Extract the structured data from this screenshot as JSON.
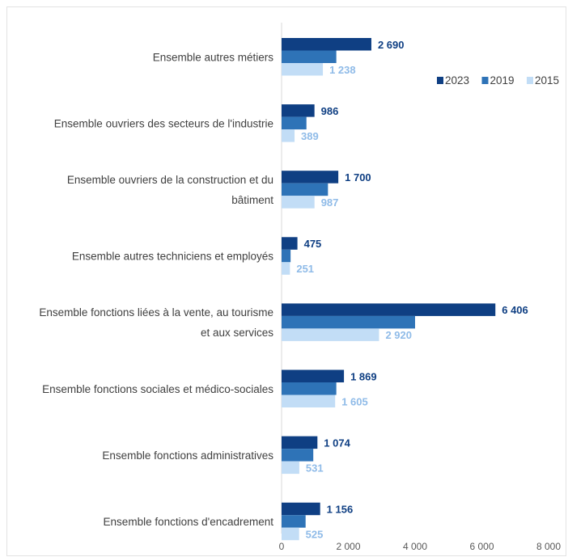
{
  "chart_data": {
    "type": "bar",
    "orientation": "horizontal",
    "categories": [
      [
        "Ensemble autres métiers"
      ],
      [
        "Ensemble ouvriers des secteurs de l'industrie"
      ],
      [
        "Ensemble ouvriers de la construction et du",
        "bâtiment"
      ],
      [
        "Ensemble autres techniciens et employés"
      ],
      [
        "Ensemble fonctions liées à la vente, au tourisme",
        "et aux services"
      ],
      [
        "Ensemble fonctions sociales et médico-sociales"
      ],
      [
        "Ensemble fonctions administratives"
      ],
      [
        "Ensemble fonctions d'encadrement"
      ]
    ],
    "series": [
      {
        "name": "2023",
        "color": "#0f3f83",
        "label_color": "#0f3f83",
        "values": [
          2690,
          986,
          1700,
          475,
          6406,
          1869,
          1074,
          1156
        ],
        "value_labels": [
          "2 690",
          "986",
          "1 700",
          "475",
          "6 406",
          "1 869",
          "1 074",
          "1 156"
        ],
        "show_labels": true
      },
      {
        "name": "2019",
        "color": "#2e73b7",
        "label_color": "#2e73b7",
        "values": [
          1640,
          745,
          1390,
          270,
          4000,
          1640,
          950,
          720
        ],
        "value_labels": [],
        "show_labels": false
      },
      {
        "name": "2015",
        "color": "#c2ddf6",
        "label_color": "#8fbbe8",
        "values": [
          1238,
          389,
          987,
          251,
          2920,
          1605,
          531,
          525
        ],
        "value_labels": [
          "1 238",
          "389",
          "987",
          "251",
          "2 920",
          "1 605",
          "531",
          "525"
        ],
        "show_labels": true
      }
    ],
    "xlim": [
      0,
      8000
    ],
    "xticks": [
      0,
      2000,
      4000,
      6000,
      8000
    ],
    "xtick_labels": [
      "0",
      "2 000",
      "4 000",
      "6 000",
      "8 000"
    ],
    "legend_position": "top-right",
    "grid": false,
    "title": "",
    "xlabel": "",
    "ylabel": ""
  }
}
